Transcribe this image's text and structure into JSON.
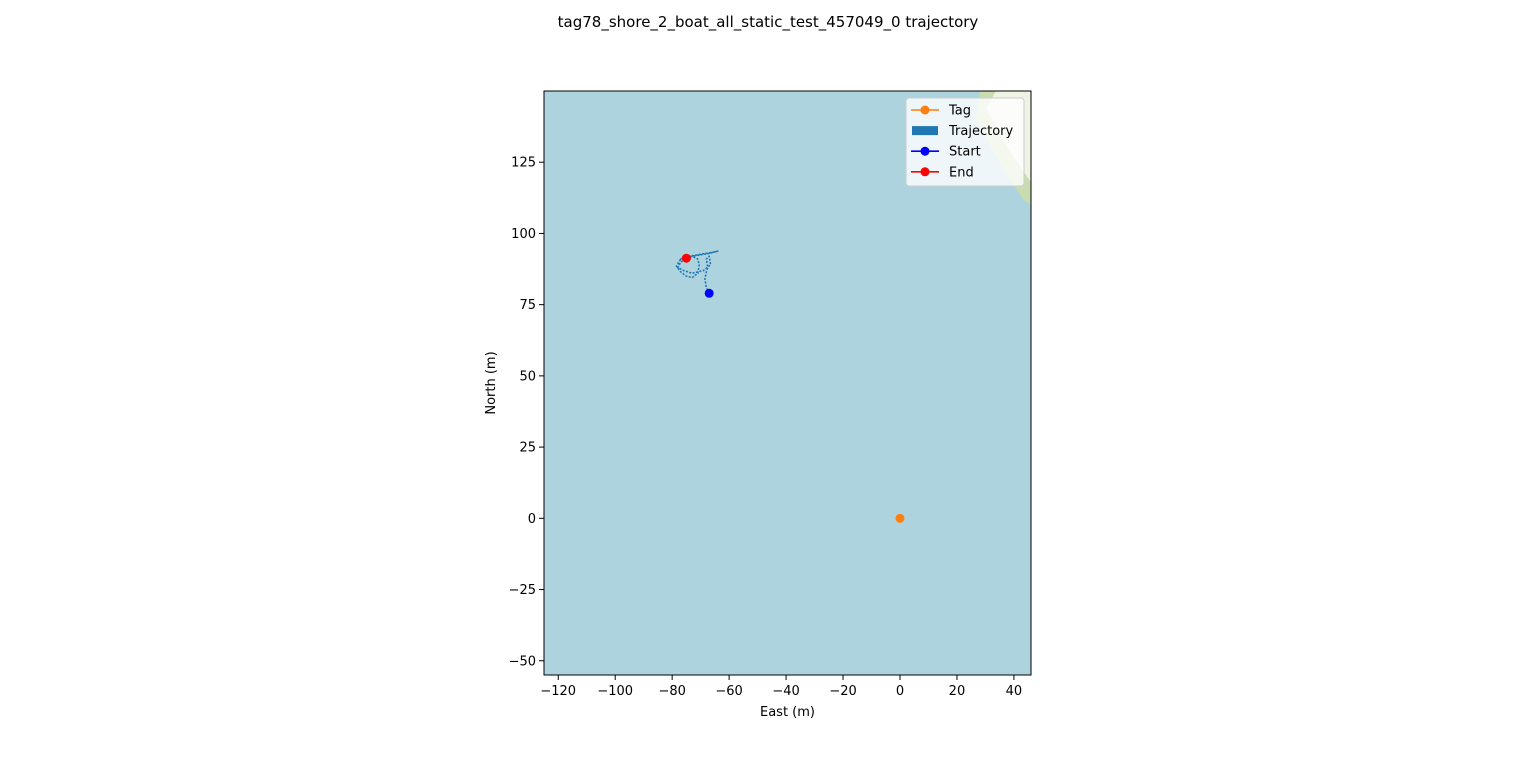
{
  "chart_data": {
    "type": "scatter",
    "title": "tag78_shore_2_boat_all_static_test_457049_0 trajectory",
    "xlabel": "East (m)",
    "ylabel": "North (m)",
    "xlim": [
      -125,
      46
    ],
    "ylim": [
      -55,
      150
    ],
    "xticks": [
      -120,
      -100,
      -80,
      -60,
      -40,
      -20,
      0,
      20,
      40
    ],
    "yticks": [
      -50,
      -25,
      0,
      25,
      50,
      75,
      100,
      125
    ],
    "xtick_labels": [
      "−120",
      "−100",
      "−80",
      "−60",
      "−40",
      "−20",
      "0",
      "20",
      "40"
    ],
    "ytick_labels": [
      "−50",
      "−25",
      "0",
      "25",
      "50",
      "75",
      "100",
      "125"
    ],
    "background": {
      "water_color": "#add3df",
      "land_color": "#c8dcb0"
    },
    "legend": {
      "placement": "top-right",
      "entries": [
        {
          "label": "Tag",
          "style": "line-marker",
          "color": "#ff7f0e"
        },
        {
          "label": "Trajectory",
          "style": "patch",
          "color": "#1f77b4"
        },
        {
          "label": "Start",
          "style": "line-marker",
          "color": "#0000ff"
        },
        {
          "label": "End",
          "style": "line-marker",
          "color": "#ff0000"
        }
      ]
    },
    "series": [
      {
        "name": "Trajectory",
        "color": "#1f77b4",
        "x": [
          -67,
          -68,
          -68.5,
          -68,
          -67.5,
          -68,
          -67,
          -66.5,
          -69,
          -73,
          -76,
          -78,
          -77,
          -75,
          -73,
          -71,
          -70.5,
          -71,
          -73,
          -75,
          -77,
          -78.5,
          -77,
          -74,
          -71,
          -68,
          -65,
          -64,
          -67,
          -70,
          -73,
          -76,
          -77,
          -75
        ],
        "y": [
          79,
          81,
          84,
          86.5,
          88,
          91,
          92,
          89,
          87,
          86,
          87,
          88,
          90,
          91,
          92,
          91,
          89,
          86,
          84.5,
          85,
          86.5,
          88.5,
          91,
          92,
          92.5,
          93,
          93.5,
          93.8,
          93,
          92.5,
          92,
          91.5,
          91,
          91.3
        ]
      },
      {
        "name": "Tag",
        "color": "#ff7f0e",
        "x": [
          0
        ],
        "y": [
          0
        ]
      },
      {
        "name": "Start",
        "color": "#0000ff",
        "x": [
          -67
        ],
        "y": [
          79
        ]
      },
      {
        "name": "End",
        "color": "#ff0000",
        "x": [
          -75
        ],
        "y": [
          91.3
        ]
      }
    ]
  }
}
